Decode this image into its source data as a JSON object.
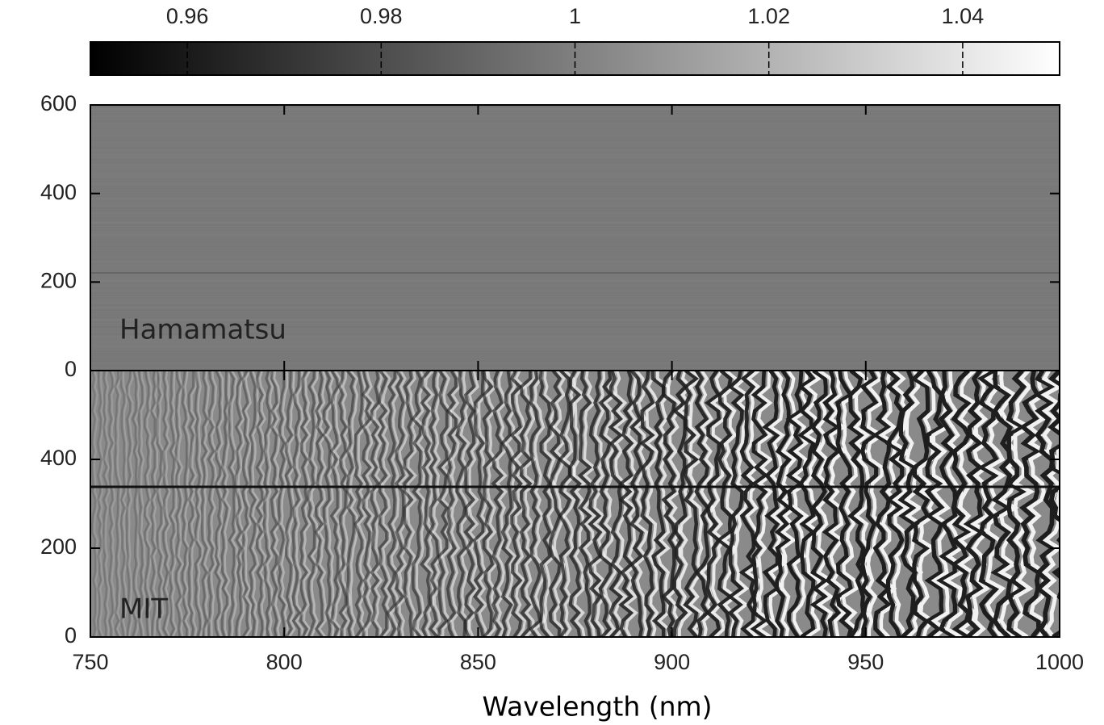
{
  "chart_data": [
    {
      "type": "colorbar",
      "xlim": [
        0.95,
        1.05
      ],
      "xticks": [
        0.96,
        0.98,
        1,
        1.02,
        1.04
      ],
      "colors": [
        "#000000",
        "#ffffff"
      ]
    },
    {
      "type": "image",
      "annotation": "Hamamatsu",
      "annotation_color": "#ff0000",
      "ylim": [
        0,
        600
      ],
      "yticks": [
        0,
        200,
        400,
        600
      ]
    },
    {
      "type": "image",
      "annotation": "MIT",
      "annotation_color": "#add8e6",
      "ylim": [
        0,
        600
      ],
      "yticks": [
        0,
        200,
        400
      ],
      "xlim": [
        750,
        1000
      ],
      "xticks": [
        750,
        800,
        850,
        900,
        950,
        1000
      ],
      "x_label": "Wavelength (nm)"
    }
  ]
}
